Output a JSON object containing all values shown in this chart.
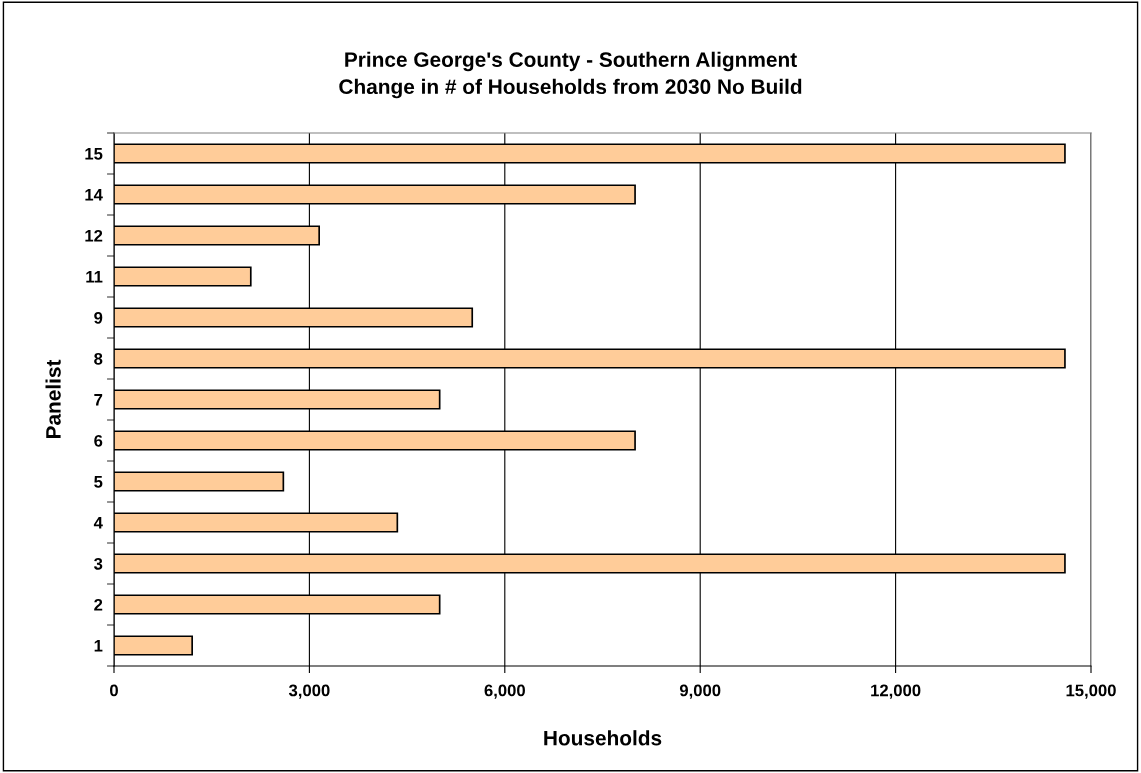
{
  "chart_data": {
    "type": "bar",
    "orientation": "horizontal",
    "title": "Prince George's County - Southern Alignment\nChange in # of Households from 2030 No Build",
    "xlabel": "Households",
    "ylabel": "Panelist",
    "categories": [
      "15",
      "14",
      "12",
      "11",
      "9",
      "8",
      "7",
      "6",
      "5",
      "4",
      "3",
      "2",
      "1"
    ],
    "values": [
      14600,
      8000,
      3150,
      2100,
      5500,
      14600,
      5000,
      8000,
      2600,
      4350,
      14600,
      5000,
      1200
    ],
    "color": "#ffcc99",
    "xlim": [
      0,
      15000
    ],
    "xticks": [
      {
        "value": 0,
        "label": "0"
      },
      {
        "value": 3000,
        "label": "3,000"
      },
      {
        "value": 6000,
        "label": "6,000"
      },
      {
        "value": 9000,
        "label": "9,000"
      },
      {
        "value": 12000,
        "label": "12,000"
      },
      {
        "value": 15000,
        "label": "15,000"
      }
    ],
    "grid": "x"
  }
}
